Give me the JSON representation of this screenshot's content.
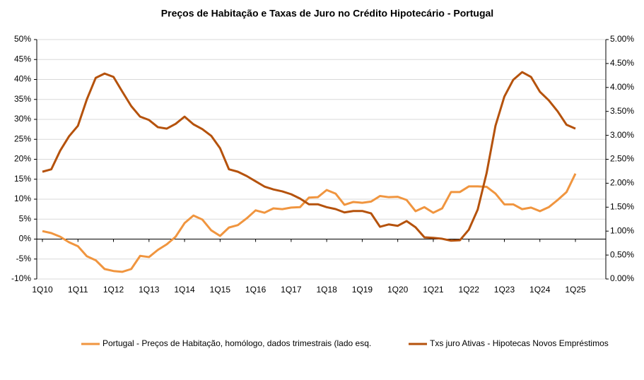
{
  "chart_data": {
    "type": "line",
    "title": "Preços de Habitação e Taxas de Juro no Crédito Hipotecário  -  Portugal",
    "categories": [
      "1Q10",
      null,
      null,
      null,
      "1Q11",
      null,
      null,
      null,
      "1Q12",
      null,
      null,
      null,
      "1Q13",
      null,
      null,
      null,
      "1Q14",
      null,
      null,
      null,
      "1Q15",
      null,
      null,
      null,
      "1Q16",
      null,
      null,
      null,
      "1Q17",
      null,
      null,
      null,
      "1Q18",
      null,
      null,
      null,
      "1Q19",
      null,
      null,
      null,
      "1Q20",
      null,
      null,
      null,
      "1Q21",
      null,
      null,
      null,
      "1Q22",
      null,
      null,
      null,
      "1Q23",
      null,
      null,
      null,
      "1Q24",
      null,
      null,
      null,
      "1Q25"
    ],
    "series": [
      {
        "name": "Portugal - Preços de Habitação, homólogo, dados trimestrais (lado esq.",
        "color": "#f0953f",
        "values": [
          2.0,
          1.5,
          0.6,
          -0.8,
          -1.8,
          -4.3,
          -5.3,
          -7.5,
          -8.0,
          -8.2,
          -7.5,
          -4.2,
          -4.5,
          -2.7,
          -1.3,
          0.6,
          4.0,
          5.9,
          4.9,
          2.2,
          0.8,
          2.9,
          3.5,
          5.2,
          7.2,
          6.6,
          7.7,
          7.5,
          7.9,
          8.0,
          10.4,
          10.5,
          12.3,
          11.4,
          8.6,
          9.3,
          9.1,
          9.4,
          10.8,
          10.5,
          10.6,
          9.8,
          7.0,
          8.0,
          6.6,
          7.7,
          11.8,
          11.8,
          13.2,
          13.2,
          13.1,
          11.4,
          8.7,
          8.7,
          7.5,
          7.9,
          7.0,
          8.0,
          9.8,
          11.8,
          16.4
        ]
      },
      {
        "name": "Txs juro Ativas - Hipotecas Novos Empréstimos",
        "color": "#b5520c",
        "axis": "y2",
        "values": [
          2.24,
          2.29,
          2.68,
          2.98,
          3.2,
          3.75,
          4.2,
          4.29,
          4.22,
          3.91,
          3.61,
          3.39,
          3.32,
          3.17,
          3.14,
          3.24,
          3.39,
          3.23,
          3.13,
          2.99,
          2.73,
          2.29,
          2.24,
          2.15,
          2.04,
          1.93,
          1.87,
          1.83,
          1.77,
          1.68,
          1.56,
          1.56,
          1.5,
          1.46,
          1.39,
          1.42,
          1.42,
          1.37,
          1.09,
          1.14,
          1.11,
          1.21,
          1.08,
          0.87,
          0.86,
          0.84,
          0.8,
          0.81,
          1.03,
          1.45,
          2.21,
          3.2,
          3.81,
          4.16,
          4.32,
          4.22,
          3.91,
          3.73,
          3.5,
          3.22,
          3.14
        ]
      }
    ],
    "ylim": [
      -10,
      50
    ],
    "yticks": [
      {
        "value": -10,
        "label": "-10%"
      },
      {
        "value": -5,
        "label": "-5%"
      },
      {
        "value": 0,
        "label": "0%"
      },
      {
        "value": 5,
        "label": "5%"
      },
      {
        "value": 10,
        "label": "10%"
      },
      {
        "value": 15,
        "label": "15%"
      },
      {
        "value": 20,
        "label": "20%"
      },
      {
        "value": 25,
        "label": "25%"
      },
      {
        "value": 30,
        "label": "30%"
      },
      {
        "value": 35,
        "label": "35%"
      },
      {
        "value": 40,
        "label": "40%"
      },
      {
        "value": 45,
        "label": "45%"
      },
      {
        "value": 50,
        "label": "50%"
      }
    ],
    "y2lim": [
      0,
      5
    ],
    "y2ticks": [
      {
        "value": 0,
        "label": "0.00%"
      },
      {
        "value": 0.5,
        "label": "0.50%"
      },
      {
        "value": 1,
        "label": "1.00%"
      },
      {
        "value": 1.5,
        "label": "1.50%"
      },
      {
        "value": 2,
        "label": "2.00%"
      },
      {
        "value": 2.5,
        "label": "2.50%"
      },
      {
        "value": 3,
        "label": "3.00%"
      },
      {
        "value": 3.5,
        "label": "3.50%"
      },
      {
        "value": 4,
        "label": "4.00%"
      },
      {
        "value": 4.5,
        "label": "4.50%"
      },
      {
        "value": 5,
        "label": "5.00%"
      }
    ],
    "grid": true,
    "legend": "bottom"
  }
}
